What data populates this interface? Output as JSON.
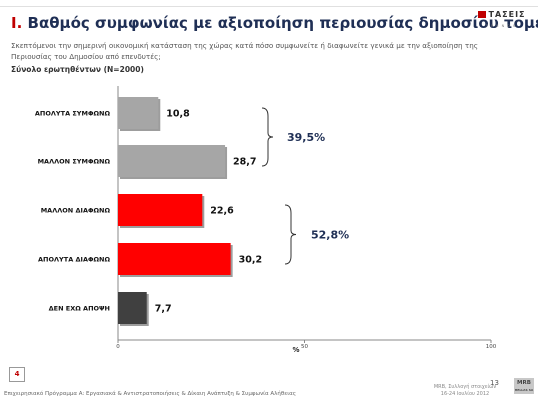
{
  "header": {
    "title_num": "Ι.",
    "title": "Βαθμός συμφωνίας με αξιοποίηση περιουσίας δημοσίου τομέα",
    "subtitle": "Σκεπτόμενοι την σημερινή οικονομική κατάσταση της χώρας κατά πόσο συμφωνείτε ή διαφωνείτε γενικά με την  αξιοποίηση της Περιουσίας του Δημοσίου από επενδυτές;",
    "sample": "Σύνολο ερωτηθέντων (Ν=2000)",
    "logo_name": "ΤΑΣΕΙΣ",
    "logo_sub": "TRENDS"
  },
  "chart_data": {
    "type": "bar",
    "orientation": "horizontal",
    "categories": [
      "ΑΠΟΛΥΤΑ ΣΥΜΦΩΝΩ",
      "ΜΑΛΛΟΝ ΣΥΜΦΩΝΩ",
      "ΜΑΛΛΟΝ ΔΙΑΦΩΝΩ",
      "ΑΠΟΛΥΤΑ ΔΙΑΦΩΝΩ",
      "ΔΕΝ ΕΧΩ ΑΠΟΨΗ"
    ],
    "values": [
      10.8,
      28.7,
      22.6,
      30.2,
      7.7
    ],
    "value_labels": [
      "10,8",
      "28,7",
      "22,6",
      "30,2",
      "7,7"
    ],
    "colors": [
      "#a6a6a6",
      "#a6a6a6",
      "#ff0000",
      "#ff0000",
      "#404040"
    ],
    "xlim": [
      0,
      100
    ],
    "xticks": [
      "0",
      "50",
      "100"
    ],
    "xlabel": "%",
    "groups": [
      {
        "label": "39,5%",
        "from": 0,
        "to": 1
      },
      {
        "label": "52,8%",
        "from": 2,
        "to": 3
      }
    ]
  },
  "footer": {
    "page_box": "4",
    "left_text": "Επιχειρησιακό Πρόγραμμα Α: Εργασιακά & Αντιστρατοποιήσεις & Δίκαιη Ανάπτυξη & Συμφωνία Αλήθειας",
    "right_line1": "MRB, Συλλογή στοιχείων",
    "right_line2": "16-24 Ιουλίου 2012",
    "page_number": "13",
    "mrb_logo": "MRB",
    "mrb_sub": "HELLAS SA"
  }
}
